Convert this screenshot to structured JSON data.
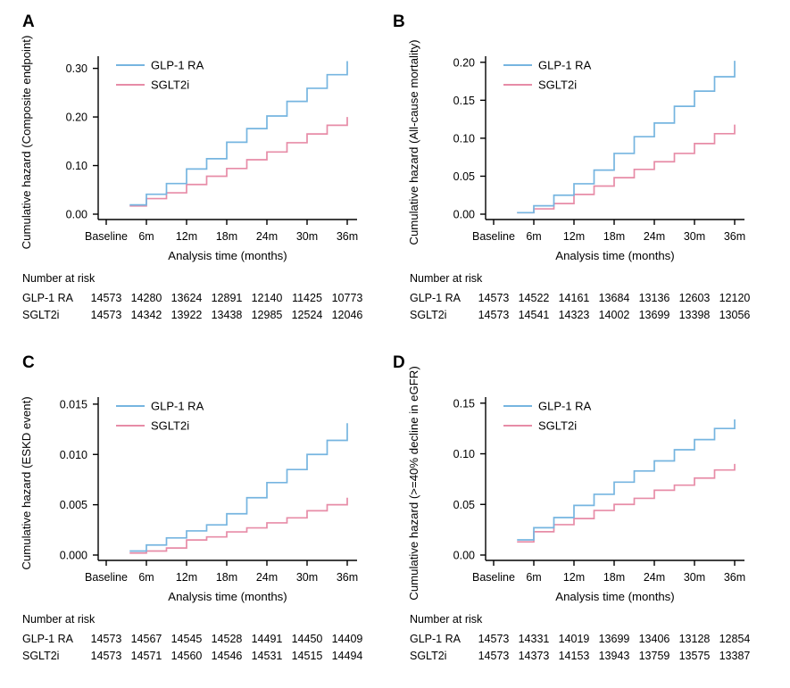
{
  "figure": {
    "at_risk_header": "Number at risk",
    "x_axis_title": "Analysis time (months)",
    "legend_entries": [
      "GLP-1 RA",
      "SGLT2i"
    ],
    "colors": {
      "glp1ra_line": "#76b5e0",
      "sglt2i_line": "#e78ca7",
      "axis": "#000000",
      "background": "#ffffff"
    }
  },
  "chart_data": {
    "type": "line",
    "variant": "step cumulative-hazard curves, 2x2 panel figure",
    "grid": "off",
    "legend_position": "top-left inside plot",
    "xlabel": "Analysis time (months)",
    "x_tick_labels": [
      "Baseline",
      "6m",
      "12m",
      "18m",
      "24m",
      "30m",
      "36m"
    ],
    "x_tick_months": [
      0,
      6,
      12,
      18,
      24,
      30,
      36
    ],
    "step_months": [
      3.5,
      6,
      9,
      12,
      15,
      18,
      21,
      24,
      27,
      30,
      33,
      36
    ],
    "series_names": [
      "GLP-1 RA",
      "SGLT2i"
    ],
    "series_colors": [
      "#76b5e0",
      "#e78ca7"
    ],
    "panels": [
      {
        "label": "A",
        "ylabel": "Cumulative hazard (Composite endpoint)",
        "ylim": [
          0,
          0.325
        ],
        "ytick_values": [
          0,
          0.1,
          0.2,
          0.3
        ],
        "ytick_labels": [
          "0.00",
          "0.10",
          "0.20",
          "0.30"
        ],
        "series": [
          {
            "name": "GLP-1 RA",
            "values": [
              0.019,
              0.041,
              0.063,
              0.093,
              0.114,
              0.148,
              0.176,
              0.202,
              0.232,
              0.259,
              0.287,
              0.315
            ]
          },
          {
            "name": "SGLT2i",
            "values": [
              0.017,
              0.032,
              0.044,
              0.061,
              0.078,
              0.094,
              0.112,
              0.128,
              0.147,
              0.165,
              0.183,
              0.2
            ]
          }
        ],
        "number_at_risk": {
          "header": "Number at risk",
          "rows": [
            {
              "label": "GLP-1 RA",
              "counts": [
                14573,
                14280,
                13624,
                12891,
                12140,
                11425,
                10773
              ]
            },
            {
              "label": "SGLT2i",
              "counts": [
                14573,
                14342,
                13922,
                13438,
                12985,
                12524,
                12046
              ]
            }
          ]
        }
      },
      {
        "label": "B",
        "ylabel": "Cumulative hazard (All-cause mortality)",
        "ylim": [
          0,
          0.208
        ],
        "ytick_values": [
          0,
          0.05,
          0.1,
          0.15,
          0.2
        ],
        "ytick_labels": [
          "0.00",
          "0.05",
          "0.10",
          "0.15",
          "0.20"
        ],
        "series": [
          {
            "name": "GLP-1 RA",
            "values": [
              0.002,
              0.011,
              0.025,
              0.04,
              0.058,
              0.08,
              0.102,
              0.12,
              0.142,
              0.162,
              0.181,
              0.202
            ]
          },
          {
            "name": "SGLT2i",
            "values": [
              0.002,
              0.007,
              0.014,
              0.026,
              0.037,
              0.048,
              0.059,
              0.069,
              0.08,
              0.093,
              0.106,
              0.118
            ]
          }
        ],
        "number_at_risk": {
          "header": "Number at risk",
          "rows": [
            {
              "label": "GLP-1 RA",
              "counts": [
                14573,
                14522,
                14161,
                13684,
                13136,
                12603,
                12120
              ]
            },
            {
              "label": "SGLT2i",
              "counts": [
                14573,
                14541,
                14323,
                14002,
                13699,
                13398,
                13056
              ]
            }
          ]
        }
      },
      {
        "label": "C",
        "ylabel": "Cumulative hazard (ESKD event)",
        "ylim": [
          0,
          0.0157
        ],
        "ytick_values": [
          0,
          0.005,
          0.01,
          0.015
        ],
        "ytick_labels": [
          "0.000",
          "0.005",
          "0.010",
          "0.015"
        ],
        "series": [
          {
            "name": "GLP-1 RA",
            "values": [
              0.0004,
              0.001,
              0.0017,
              0.0024,
              0.003,
              0.0041,
              0.0057,
              0.0072,
              0.0085,
              0.01,
              0.0114,
              0.0131
            ]
          },
          {
            "name": "SGLT2i",
            "values": [
              0.0002,
              0.0004,
              0.0007,
              0.0015,
              0.0018,
              0.0023,
              0.0027,
              0.0032,
              0.0037,
              0.0044,
              0.005,
              0.0057
            ]
          }
        ],
        "number_at_risk": {
          "header": "Number at risk",
          "rows": [
            {
              "label": "GLP-1 RA",
              "counts": [
                14573,
                14567,
                14545,
                14528,
                14491,
                14450,
                14409
              ]
            },
            {
              "label": "SGLT2i",
              "counts": [
                14573,
                14571,
                14560,
                14546,
                14531,
                14515,
                14494
              ]
            }
          ]
        }
      },
      {
        "label": "D",
        "ylabel": "Cumulative hazard (>=40% decline in eGFR)",
        "ylim": [
          0,
          0.156
        ],
        "ytick_values": [
          0,
          0.05,
          0.1,
          0.15
        ],
        "ytick_labels": [
          "0.00",
          "0.05",
          "0.10",
          "0.15"
        ],
        "series": [
          {
            "name": "GLP-1 RA",
            "values": [
              0.015,
              0.027,
              0.037,
              0.049,
              0.06,
              0.072,
              0.083,
              0.093,
              0.104,
              0.114,
              0.125,
              0.134
            ]
          },
          {
            "name": "SGLT2i",
            "values": [
              0.013,
              0.023,
              0.03,
              0.036,
              0.044,
              0.05,
              0.056,
              0.064,
              0.069,
              0.076,
              0.084,
              0.09
            ]
          }
        ],
        "number_at_risk": {
          "header": "Number at risk",
          "rows": [
            {
              "label": "GLP-1 RA",
              "counts": [
                14573,
                14331,
                14019,
                13699,
                13406,
                13128,
                12854
              ]
            },
            {
              "label": "SGLT2i",
              "counts": [
                14573,
                14373,
                14153,
                13943,
                13759,
                13575,
                13387
              ]
            }
          ]
        }
      }
    ]
  }
}
